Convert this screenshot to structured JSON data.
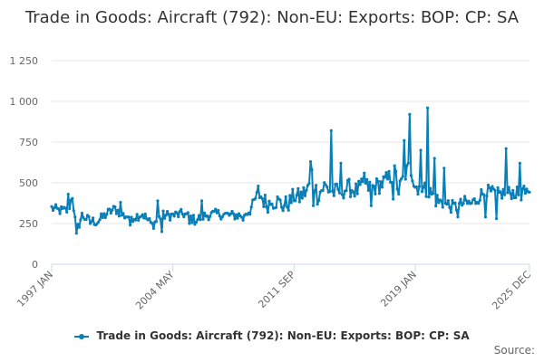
{
  "title": "Trade in Goods: Aircraft (792): Non-EU: Exports: BOP: CP: SA",
  "legend_label": "Trade in Goods: Aircraft (792): Non-EU: Exports: BOP: CP: SA",
  "credits": "Source:",
  "series_color": "#0a7fb7",
  "chart_data": {
    "type": "line",
    "title": "Trade in Goods: Aircraft (792): Non-EU: Exports: BOP: CP: SA",
    "xlabel": "",
    "ylabel": "",
    "ylim": [
      0,
      1250
    ],
    "yticks": [
      0,
      250,
      500,
      750,
      1000,
      1250
    ],
    "ytick_labels": [
      "0",
      "250",
      "500",
      "750",
      "1 000",
      "1 250"
    ],
    "xticks": [
      "1997 JAN",
      "2004 MAY",
      "2011 SEP",
      "2019 JAN",
      "2025 DEC"
    ],
    "grid": true,
    "legend": "bottom",
    "start": "1997 JAN",
    "end": "2025 DEC",
    "frequency": "monthly",
    "anchor_values": [
      [
        0,
        345
      ],
      [
        5,
        330
      ],
      [
        12,
        330
      ],
      [
        15,
        420
      ],
      [
        18,
        200
      ],
      [
        22,
        300
      ],
      [
        27,
        270
      ],
      [
        33,
        260
      ],
      [
        40,
        310
      ],
      [
        46,
        340
      ],
      [
        52,
        300
      ],
      [
        60,
        290
      ],
      [
        66,
        310
      ],
      [
        73,
        240
      ],
      [
        80,
        300
      ],
      [
        88,
        300
      ],
      [
        96,
        310
      ],
      [
        104,
        270
      ],
      [
        112,
        300
      ],
      [
        120,
        310
      ],
      [
        130,
        300
      ],
      [
        138,
        300
      ],
      [
        144,
        330
      ],
      [
        150,
        440
      ],
      [
        156,
        370
      ],
      [
        163,
        390
      ],
      [
        168,
        360
      ],
      [
        173,
        380
      ],
      [
        176,
        420
      ],
      [
        180,
        410
      ],
      [
        186,
        460
      ],
      [
        189,
        560
      ],
      [
        193,
        420
      ],
      [
        198,
        480
      ],
      [
        204,
        440
      ],
      [
        210,
        450
      ],
      [
        216,
        470
      ],
      [
        221,
        450
      ],
      [
        227,
        480
      ],
      [
        233,
        470
      ],
      [
        239,
        490
      ],
      [
        244,
        520
      ],
      [
        249,
        560
      ],
      [
        252,
        450
      ],
      [
        256,
        540
      ],
      [
        260,
        600
      ],
      [
        264,
        500
      ],
      [
        268,
        470
      ],
      [
        272,
        450
      ],
      [
        276,
        430
      ],
      [
        280,
        390
      ],
      [
        284,
        370
      ],
      [
        288,
        360
      ],
      [
        292,
        350
      ],
      [
        296,
        360
      ],
      [
        300,
        380
      ],
      [
        304,
        370
      ],
      [
        308,
        390
      ],
      [
        312,
        430
      ],
      [
        316,
        450
      ],
      [
        320,
        440
      ],
      [
        325,
        430
      ],
      [
        330,
        440
      ],
      [
        335,
        440
      ],
      [
        341,
        430
      ],
      [
        347,
        420
      ]
    ],
    "peaks": [
      [
        12,
        430
      ],
      [
        28,
        250
      ],
      [
        50,
        380
      ],
      [
        77,
        390
      ],
      [
        109,
        390
      ],
      [
        150,
        480
      ],
      [
        188,
        630
      ],
      [
        203,
        820
      ],
      [
        210,
        620
      ],
      [
        227,
        560
      ],
      [
        250,
        570
      ],
      [
        256,
        760
      ],
      [
        260,
        920
      ],
      [
        268,
        700
      ],
      [
        273,
        960
      ],
      [
        278,
        650
      ],
      [
        285,
        590
      ],
      [
        313,
        430
      ],
      [
        330,
        710
      ],
      [
        340,
        620
      ],
      [
        343,
        480
      ]
    ],
    "troughs": [
      [
        18,
        190
      ],
      [
        57,
        240
      ],
      [
        80,
        200
      ],
      [
        100,
        250
      ],
      [
        139,
        270
      ],
      [
        160,
        370
      ],
      [
        190,
        360
      ],
      [
        232,
        360
      ],
      [
        248,
        400
      ],
      [
        266,
        430
      ],
      [
        295,
        290
      ],
      [
        315,
        290
      ],
      [
        323,
        280
      ]
    ]
  }
}
